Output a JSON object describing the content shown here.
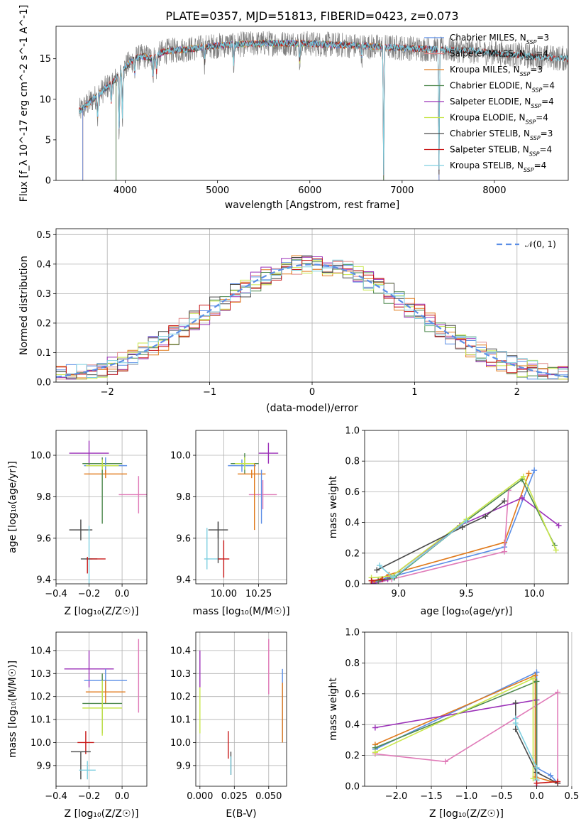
{
  "figure_title": "PLATE=0357, MJD=51813, FIBERID=0423, z=0.073",
  "colors": {
    "Chabrier MILES": "#5b8ee6",
    "Salpeter MILES": "#e08a8a",
    "Kroupa MILES": "#e07a1c",
    "Chabrier ELODIE": "#4f8a4f",
    "Salpeter ELODIE": "#9b30b8",
    "Kroupa ELODIE": "#c8e64a",
    "Chabrier STELIB": "#4a4a4a",
    "Salpeter STELIB": "#c81818",
    "Kroupa STELIB": "#7ecfe0",
    "Pink": "#e07ab8",
    "Observed": "#808080",
    "Gaussian": "#5b8ee6"
  },
  "chart_data": [
    {
      "id": "spectrum",
      "type": "line",
      "xlabel": "wavelength [Angstrom, rest frame]",
      "ylabel": "Flux [f_λ 10^-17 erg cm^-2 s^-1 A^-1]",
      "xlim": [
        3250,
        8800
      ],
      "ylim": [
        0,
        19
      ],
      "xticks": [
        4000,
        5000,
        6000,
        7000,
        8000
      ],
      "yticks": [
        0,
        5,
        10,
        15
      ],
      "legend_position": "top-right",
      "legend": [
        {
          "name": "Chabrier MILES",
          "label_main": "Chabrier MILES, N",
          "label_sub": "SSP",
          "label_end": "=3",
          "color_key": "Chabrier MILES"
        },
        {
          "name": "Salpeter MILES",
          "label_main": "Salpeter MILES, N",
          "label_sub": "SSP",
          "label_end": "=4",
          "color_key": "Salpeter MILES"
        },
        {
          "name": "Kroupa MILES",
          "label_main": "Kroupa MILES, N",
          "label_sub": "SSP",
          "label_end": "=3",
          "color_key": "Kroupa MILES"
        },
        {
          "name": "Chabrier ELODIE",
          "label_main": "Chabrier ELODIE, N",
          "label_sub": "SSP",
          "label_end": "=4",
          "color_key": "Chabrier ELODIE"
        },
        {
          "name": "Salpeter ELODIE",
          "label_main": "Salpeter ELODIE, N",
          "label_sub": "SSP",
          "label_end": "=4",
          "color_key": "Salpeter ELODIE"
        },
        {
          "name": "Kroupa ELODIE",
          "label_main": "Kroupa ELODIE, N",
          "label_sub": "SSP",
          "label_end": "=4",
          "color_key": "Kroupa ELODIE"
        },
        {
          "name": "Chabrier STELIB",
          "label_main": "Chabrier STELIB, N",
          "label_sub": "SSP",
          "label_end": "=3",
          "color_key": "Chabrier STELIB"
        },
        {
          "name": "Salpeter STELIB",
          "label_main": "Salpeter STELIB, N",
          "label_sub": "SSP",
          "label_end": "=4",
          "color_key": "Salpeter STELIB"
        },
        {
          "name": "Kroupa STELIB",
          "label_main": "Kroupa STELIB, N",
          "label_sub": "SSP",
          "label_end": "=4",
          "color_key": "Kroupa STELIB"
        }
      ],
      "continuum": [
        [
          3500,
          8.5
        ],
        [
          3600,
          9.5
        ],
        [
          3700,
          10.5
        ],
        [
          3800,
          11.5
        ],
        [
          3900,
          12.5
        ],
        [
          4000,
          14.0
        ],
        [
          4100,
          15.0
        ],
        [
          4200,
          15.3
        ],
        [
          4300,
          15.0
        ],
        [
          4400,
          15.8
        ],
        [
          4500,
          16.0
        ],
        [
          4700,
          16.2
        ],
        [
          4900,
          16.5
        ],
        [
          5100,
          16.7
        ],
        [
          5300,
          16.8
        ],
        [
          5500,
          16.9
        ],
        [
          5700,
          16.9
        ],
        [
          5900,
          16.9
        ],
        [
          6100,
          16.8
        ],
        [
          6300,
          16.7
        ],
        [
          6500,
          16.6
        ],
        [
          6700,
          16.5
        ],
        [
          6900,
          16.4
        ],
        [
          7100,
          16.3
        ],
        [
          7300,
          16.2
        ],
        [
          7500,
          16.1
        ],
        [
          7700,
          16.0
        ],
        [
          7900,
          15.8
        ],
        [
          8100,
          15.6
        ],
        [
          8300,
          15.4
        ],
        [
          8500,
          15.2
        ],
        [
          8800,
          15.0
        ]
      ],
      "dips": [
        [
          3700,
          3.0
        ],
        [
          3850,
          2.5
        ],
        [
          3934,
          7.5
        ],
        [
          3969,
          6.0
        ],
        [
          4102,
          2.0
        ],
        [
          4300,
          2.5
        ],
        [
          4340,
          2.0
        ],
        [
          4861,
          2.0
        ],
        [
          5175,
          2.5
        ],
        [
          5890,
          2.5
        ],
        [
          6563,
          1.5
        ],
        [
          6800,
          16.5
        ],
        [
          7400,
          16.0
        ]
      ]
    },
    {
      "id": "residuals",
      "type": "histogram",
      "xlabel": "(data-model)/error",
      "ylabel": "Normed distribution",
      "xlim": [
        -2.5,
        2.5
      ],
      "ylim": [
        0,
        0.52
      ],
      "xticks": [
        -2,
        -1,
        0,
        1,
        2
      ],
      "yticks": [
        0.0,
        0.1,
        0.2,
        0.3,
        0.4,
        0.5
      ],
      "legend": [
        {
          "name": "N(0,1)",
          "label": "𝒩(0, 1)",
          "style": "dashed"
        }
      ],
      "legend_position": "top-right",
      "gaussian": {
        "mean": 0,
        "sigma": 1
      },
      "bin_width": 0.1,
      "spread": 0.035
    },
    {
      "id": "age_vs_z",
      "type": "scatter",
      "xlabel_text": "Z [log₁₀(Z/Z☉)]",
      "ylabel_text": "age  [log₁₀(age/yr)]",
      "xlim": [
        -0.4,
        0.15
      ],
      "ylim": [
        9.38,
        10.12
      ],
      "xticks": [
        -0.4,
        -0.2,
        0.0
      ],
      "yticks": [
        9.4,
        9.6,
        9.8,
        10.0
      ],
      "points": [
        {
          "x": -0.2,
          "y": 10.01,
          "xerr": 0.12,
          "yerr": 0.06,
          "color": "Salpeter ELODIE"
        },
        {
          "x": -0.12,
          "y": 9.96,
          "xerr": 0.12,
          "yerr": 0.03,
          "color": "Chabrier ELODIE"
        },
        {
          "x": -0.1,
          "y": 9.95,
          "xerr": 0.13,
          "yerr": 0.04,
          "color": "Chabrier MILES"
        },
        {
          "x": -0.12,
          "y": 9.95,
          "xerr": 0.1,
          "yerr": 0.03,
          "color": "Kroupa ELODIE"
        },
        {
          "x": -0.1,
          "y": 9.91,
          "xerr": 0.13,
          "yerr": 0.02,
          "color": "Kroupa MILES"
        },
        {
          "x": 0.1,
          "y": 9.81,
          "xerr": 0.12,
          "yerr": 0.09,
          "color": "Pink"
        },
        {
          "x": -0.12,
          "y": 9.8,
          "xerr": 0.0,
          "yerr": 0.13,
          "color": "Chabrier ELODIE"
        },
        {
          "x": -0.25,
          "y": 9.64,
          "xerr": 0.07,
          "yerr": 0.05,
          "color": "Chabrier STELIB"
        },
        {
          "x": -0.2,
          "y": 9.5,
          "xerr": 0.02,
          "yerr": 0.16,
          "color": "Kroupa STELIB"
        },
        {
          "x": -0.2,
          "y": 9.5,
          "xerr": 0.05,
          "yerr": 0.0,
          "color": "Chabrier STELIB"
        },
        {
          "x": -0.15,
          "y": 9.5,
          "xerr": 0.05,
          "yerr": 0.0,
          "color": "Salpeter STELIB"
        },
        {
          "x": -0.21,
          "y": 9.47,
          "xerr": 0.0,
          "yerr": 0.04,
          "color": "Salpeter STELIB"
        }
      ]
    },
    {
      "id": "age_vs_mass",
      "type": "scatter",
      "xlabel_text": "mass [log₁₀(M/M☉)]",
      "ylabel_text": "",
      "xlim": [
        9.8,
        10.45
      ],
      "ylim": [
        9.38,
        10.12
      ],
      "xticks": [
        10.0,
        10.25
      ],
      "yticks": [
        9.4,
        9.6,
        9.8,
        10.0
      ],
      "points": [
        {
          "x": 10.32,
          "y": 10.01,
          "xerr": 0.07,
          "yerr": 0.05,
          "color": "Salpeter ELODIE"
        },
        {
          "x": 10.15,
          "y": 9.96,
          "xerr": 0.1,
          "yerr": 0.05,
          "color": "Chabrier ELODIE"
        },
        {
          "x": 10.13,
          "y": 9.95,
          "xerr": 0.1,
          "yerr": 0.03,
          "color": "Chabrier MILES"
        },
        {
          "x": 10.15,
          "y": 9.96,
          "xerr": 0.07,
          "yerr": 0.03,
          "color": "Kroupa ELODIE"
        },
        {
          "x": 10.2,
          "y": 9.91,
          "xerr": 0.1,
          "yerr": 0.02,
          "color": "Kroupa MILES"
        },
        {
          "x": 10.28,
          "y": 9.81,
          "xerr": 0.1,
          "yerr": 0.07,
          "color": "Pink"
        },
        {
          "x": 10.27,
          "y": 9.8,
          "xerr": 0.0,
          "yerr": 0.13,
          "color": "Chabrier MILES"
        },
        {
          "x": 10.22,
          "y": 9.8,
          "xerr": 0.0,
          "yerr": 0.16,
          "color": "Kroupa MILES"
        },
        {
          "x": 9.96,
          "y": 9.64,
          "xerr": 0.07,
          "yerr": 0.04,
          "color": "Chabrier STELIB"
        },
        {
          "x": 9.92,
          "y": 9.5,
          "xerr": 0.06,
          "yerr": 0.0,
          "color": "Kroupa STELIB"
        },
        {
          "x": 9.88,
          "y": 9.55,
          "xerr": 0.0,
          "yerr": 0.1,
          "color": "Kroupa STELIB"
        },
        {
          "x": 9.96,
          "y": 9.58,
          "xerr": 0.0,
          "yerr": 0.1,
          "color": "Chabrier STELIB"
        },
        {
          "x": 10.0,
          "y": 9.5,
          "xerr": 0.04,
          "yerr": 0.09,
          "color": "Salpeter STELIB"
        }
      ]
    },
    {
      "id": "weight_vs_age",
      "type": "line",
      "xlabel_text": "age  [log₁₀(age/yr)]",
      "ylabel_text": "mass weight",
      "xlim": [
        8.75,
        10.25
      ],
      "ylim": [
        0,
        1.0
      ],
      "xticks": [
        9.0,
        9.5,
        10.0
      ],
      "yticks": [
        0.0,
        0.2,
        0.4,
        0.6,
        0.8,
        1.0
      ],
      "series": [
        {
          "color": "Chabrier MILES",
          "x": [
            8.81,
            8.92,
            9.78,
            10.0
          ],
          "y": [
            0.01,
            0.04,
            0.24,
            0.74
          ]
        },
        {
          "color": "Kroupa MILES",
          "x": [
            8.81,
            8.93,
            9.78,
            9.96
          ],
          "y": [
            0.01,
            0.06,
            0.27,
            0.72
          ]
        },
        {
          "color": "Pink",
          "x": [
            8.81,
            8.95,
            9.78,
            9.81
          ],
          "y": [
            0.0,
            0.03,
            0.21,
            0.61
          ]
        },
        {
          "color": "Salpeter ELODIE",
          "x": [
            8.81,
            8.92,
            9.45,
            9.91,
            10.18
          ],
          "y": [
            0.0,
            0.03,
            0.38,
            0.56,
            0.38
          ]
        },
        {
          "color": "Chabrier ELODIE",
          "x": [
            8.85,
            8.97,
            9.5,
            9.91,
            10.15
          ],
          "y": [
            0.02,
            0.04,
            0.41,
            0.68,
            0.25
          ]
        },
        {
          "color": "Kroupa ELODIE",
          "x": [
            8.8,
            8.95,
            9.5,
            9.92,
            10.16
          ],
          "y": [
            0.04,
            0.05,
            0.42,
            0.7,
            0.22
          ]
        },
        {
          "color": "Chabrier STELIB",
          "x": [
            8.84,
            9.47,
            9.64,
            9.78
          ],
          "y": [
            0.09,
            0.37,
            0.44,
            0.54
          ]
        },
        {
          "color": "Kroupa STELIB",
          "x": [
            8.86,
            8.96,
            9.5
          ],
          "y": [
            0.12,
            0.04,
            0.41
          ]
        },
        {
          "color": "Salpeter STELIB",
          "x": [
            8.8,
            8.88
          ],
          "y": [
            0.02,
            0.03
          ]
        }
      ]
    },
    {
      "id": "mass_vs_z",
      "type": "scatter",
      "xlabel_text": "Z [log₁₀(Z/Z☉)]",
      "ylabel_text": "mass [log₁₀(M/M☉)]",
      "xlim": [
        -0.4,
        0.15
      ],
      "ylim": [
        9.81,
        10.48
      ],
      "xticks": [
        -0.4,
        -0.2,
        0.0
      ],
      "yticks": [
        9.9,
        10.0,
        10.1,
        10.2,
        10.3,
        10.4
      ],
      "points": [
        {
          "x": -0.2,
          "y": 10.32,
          "xerr": 0.15,
          "yerr": 0.08,
          "color": "Salpeter ELODIE"
        },
        {
          "x": -0.1,
          "y": 10.27,
          "xerr": 0.13,
          "yerr": 0.05,
          "color": "Chabrier MILES"
        },
        {
          "x": -0.1,
          "y": 10.22,
          "xerr": 0.12,
          "yerr": 0.05,
          "color": "Kroupa MILES"
        },
        {
          "x": 0.1,
          "y": 10.29,
          "xerr": 0.0,
          "yerr": 0.16,
          "color": "Pink"
        },
        {
          "x": -0.12,
          "y": 10.17,
          "xerr": 0.12,
          "yerr": 0.13,
          "color": "Chabrier ELODIE"
        },
        {
          "x": -0.12,
          "y": 10.15,
          "xerr": 0.12,
          "yerr": 0.12,
          "color": "Kroupa ELODIE"
        },
        {
          "x": -0.22,
          "y": 10.0,
          "xerr": 0.05,
          "yerr": 0.05,
          "color": "Salpeter STELIB"
        },
        {
          "x": -0.25,
          "y": 9.96,
          "xerr": 0.06,
          "yerr": 0.0,
          "color": "Chabrier STELIB"
        },
        {
          "x": -0.25,
          "y": 9.9,
          "xerr": 0.0,
          "yerr": 0.06,
          "color": "Chabrier STELIB"
        },
        {
          "x": -0.21,
          "y": 9.88,
          "xerr": 0.05,
          "yerr": 0.04,
          "color": "Kroupa STELIB"
        }
      ]
    },
    {
      "id": "mass_vs_ebv",
      "type": "scatter",
      "xlabel_text": "E(B-V)",
      "ylabel_text": "",
      "xlim": [
        -0.003,
        0.063
      ],
      "ylim": [
        9.81,
        10.48
      ],
      "xticks": [
        0.0,
        0.025,
        0.05
      ],
      "yticks": [
        9.9,
        10.0,
        10.1,
        10.2,
        10.3,
        10.4
      ],
      "points": [
        {
          "x": 0.0,
          "y": 10.32,
          "xerr": 0.0,
          "yerr": 0.08,
          "color": "Salpeter ELODIE"
        },
        {
          "x": 0.0,
          "y": 10.14,
          "xerr": 0.0,
          "yerr": 0.1,
          "color": "Kroupa ELODIE"
        },
        {
          "x": 0.05,
          "y": 10.33,
          "xerr": 0.0,
          "yerr": 0.12,
          "color": "Pink"
        },
        {
          "x": 0.06,
          "y": 10.16,
          "xerr": 0.0,
          "yerr": 0.16,
          "color": "Chabrier MILES"
        },
        {
          "x": 0.06,
          "y": 10.13,
          "xerr": 0.0,
          "yerr": 0.13,
          "color": "Kroupa MILES"
        },
        {
          "x": 0.0206,
          "y": 9.99,
          "xerr": 0.0,
          "yerr": 0.06,
          "color": "Salpeter STELIB"
        },
        {
          "x": 0.0225,
          "y": 9.91,
          "xerr": 0.0,
          "yerr": 0.05,
          "color": "Chabrier STELIB"
        },
        {
          "x": 0.0225,
          "y": 9.9,
          "xerr": 0.0,
          "yerr": 0.04,
          "color": "Kroupa STELIB"
        }
      ]
    },
    {
      "id": "weight_vs_z",
      "type": "line",
      "xlabel_text": "Z [log₁₀(Z/Z☉)]",
      "ylabel_text": "mass weight",
      "xlim": [
        -2.45,
        0.45
      ],
      "ylim": [
        0,
        1.0
      ],
      "xticks": [
        -2.0,
        -1.5,
        -1.0,
        -0.5,
        0.0,
        0.5
      ],
      "yticks": [
        0.0,
        0.2,
        0.4,
        0.6,
        0.8,
        1.0
      ],
      "series": [
        {
          "color": "Chabrier MILES",
          "x": [
            -2.3,
            0.0,
            0.0,
            0.2,
            0.3
          ],
          "y": [
            0.24,
            0.74,
            0.12,
            0.07,
            0.02
          ]
        },
        {
          "color": "Kroupa MILES",
          "x": [
            -2.3,
            -0.02,
            -0.02,
            0.3
          ],
          "y": [
            0.27,
            0.72,
            0.06,
            0.02
          ]
        },
        {
          "color": "Pink",
          "x": [
            -2.3,
            -1.3,
            0.3,
            0.3
          ],
          "y": [
            0.21,
            0.16,
            0.61,
            0.02
          ]
        },
        {
          "color": "Salpeter ELODIE",
          "x": [
            -2.3,
            0.0,
            0.0
          ],
          "y": [
            0.38,
            0.56,
            0.0
          ]
        },
        {
          "color": "Chabrier ELODIE",
          "x": [
            -2.3,
            0.0,
            0.0
          ],
          "y": [
            0.25,
            0.68,
            0.04
          ]
        },
        {
          "color": "Kroupa ELODIE",
          "x": [
            -2.3,
            -0.05,
            -0.05
          ],
          "y": [
            0.22,
            0.7,
            0.05
          ]
        },
        {
          "color": "Chabrier STELIB",
          "x": [
            -0.3,
            -0.3,
            0.0,
            0.3
          ],
          "y": [
            0.54,
            0.37,
            0.09,
            0.02
          ]
        },
        {
          "color": "Kroupa STELIB",
          "x": [
            -0.3,
            -0.3,
            0.0,
            0.0
          ],
          "y": [
            0.44,
            0.41,
            0.12,
            0.04
          ]
        },
        {
          "color": "Salpeter STELIB",
          "x": [
            0.0,
            0.3
          ],
          "y": [
            0.02,
            0.03
          ]
        }
      ]
    }
  ]
}
